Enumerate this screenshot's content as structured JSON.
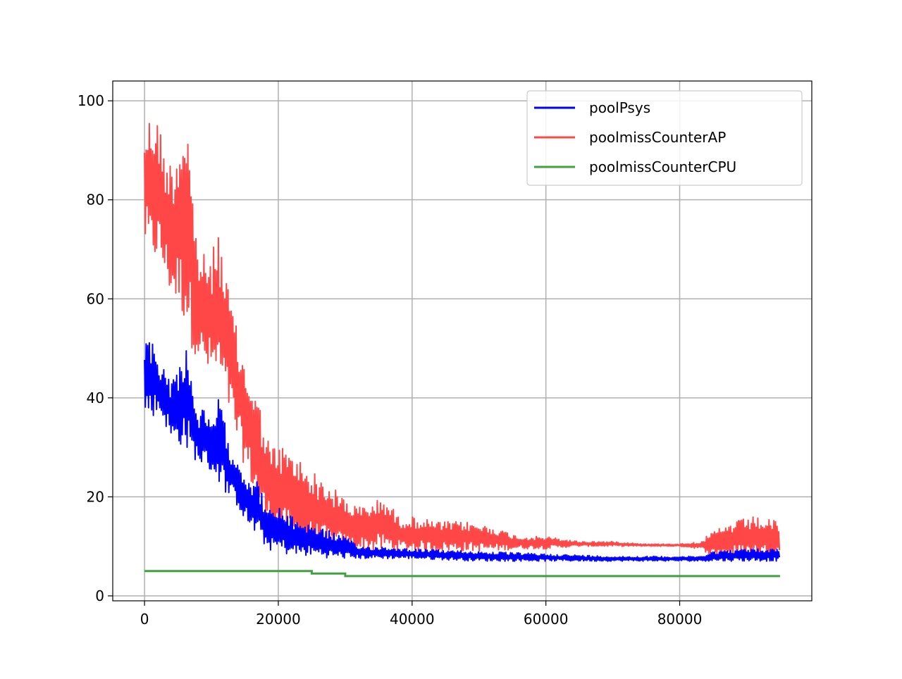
{
  "chart_data": {
    "type": "line",
    "title": "",
    "xlabel": "",
    "ylabel": "",
    "xlim": [
      -4750,
      99750
    ],
    "ylim": [
      -1,
      104
    ],
    "x_ticks": [
      0,
      20000,
      40000,
      60000,
      80000
    ],
    "x_tick_labels": [
      "0",
      "20000",
      "40000",
      "60000",
      "80000"
    ],
    "y_ticks": [
      0,
      20,
      40,
      60,
      80,
      100
    ],
    "y_tick_labels": [
      "0",
      "20",
      "40",
      "60",
      "80",
      "100"
    ],
    "grid": true,
    "legend_position": "top-right",
    "series": [
      {
        "name": "poolmissCounterAP",
        "color": "#ff4747",
        "band": true,
        "x": [
          0,
          1000,
          2000,
          3000,
          4000,
          5000,
          6000,
          6500,
          7000,
          8000,
          9000,
          10000,
          11000,
          12000,
          13000,
          14000,
          15000,
          16000,
          17000,
          18000,
          19000,
          20000,
          22000,
          24000,
          26000,
          28000,
          30000,
          32000,
          34000,
          36000,
          38000,
          40000,
          44000,
          48000,
          52000,
          56000,
          60000,
          65000,
          70000,
          75000,
          80000,
          83000,
          85000,
          88000,
          91000,
          95000
        ],
        "upper": [
          95,
          98,
          97,
          90,
          88,
          92,
          99,
          97,
          85,
          70,
          69,
          68,
          76,
          65,
          60,
          52,
          47,
          44,
          40,
          34,
          30,
          31,
          29,
          27,
          24,
          22,
          20,
          18,
          19,
          20,
          16,
          16,
          15,
          15,
          14,
          12,
          12,
          11,
          11,
          10.5,
          10.5,
          11,
          13,
          15,
          16,
          15
        ],
        "lower": [
          71,
          67,
          68,
          64,
          60,
          58,
          55,
          53,
          50,
          48,
          45,
          44,
          43,
          40,
          35,
          30,
          26,
          22,
          18,
          15,
          13,
          12,
          11,
          10,
          10,
          9.5,
          9,
          9,
          9,
          9,
          9,
          9,
          9,
          9,
          9,
          9.5,
          9.5,
          10,
          10,
          10,
          10,
          9.5,
          8,
          8,
          8,
          8
        ]
      },
      {
        "name": "poolPsys",
        "color": "#0000ff",
        "band": true,
        "x": [
          0,
          1000,
          2000,
          3000,
          4000,
          5000,
          6000,
          6500,
          7000,
          8000,
          9000,
          10000,
          11000,
          12000,
          13000,
          14000,
          15000,
          16000,
          17000,
          18000,
          19000,
          20000,
          22000,
          24000,
          26000,
          28000,
          30000,
          32000,
          35000,
          40000,
          50000,
          60000,
          70000,
          80000,
          83000,
          85000,
          90000,
          95000
        ],
        "upper": [
          51,
          52,
          48,
          46,
          44,
          46,
          50,
          52,
          44,
          37,
          38,
          34,
          41,
          35,
          30,
          28,
          25,
          24,
          23,
          19,
          17,
          18,
          16,
          15,
          14,
          13,
          12,
          10,
          10,
          9.5,
          9,
          8.5,
          8,
          8,
          8,
          9,
          9.5,
          9.5
        ],
        "lower": [
          37,
          36,
          37,
          35,
          31,
          30,
          31,
          28,
          28,
          27,
          26,
          25,
          23,
          21,
          19,
          18,
          15,
          13,
          12,
          10,
          9,
          9,
          8,
          8,
          8,
          7.5,
          7.5,
          7.5,
          7.5,
          7.5,
          7,
          7,
          7,
          7,
          7,
          7,
          7,
          7
        ]
      },
      {
        "name": "poolmissCounterCPU",
        "color": "#3fa23f",
        "band": false,
        "x": [
          0,
          25000,
          25001,
          30000,
          30001,
          36000,
          36001,
          95000
        ],
        "values": [
          5,
          5,
          4.5,
          4.5,
          4,
          4,
          4,
          4
        ]
      }
    ]
  }
}
